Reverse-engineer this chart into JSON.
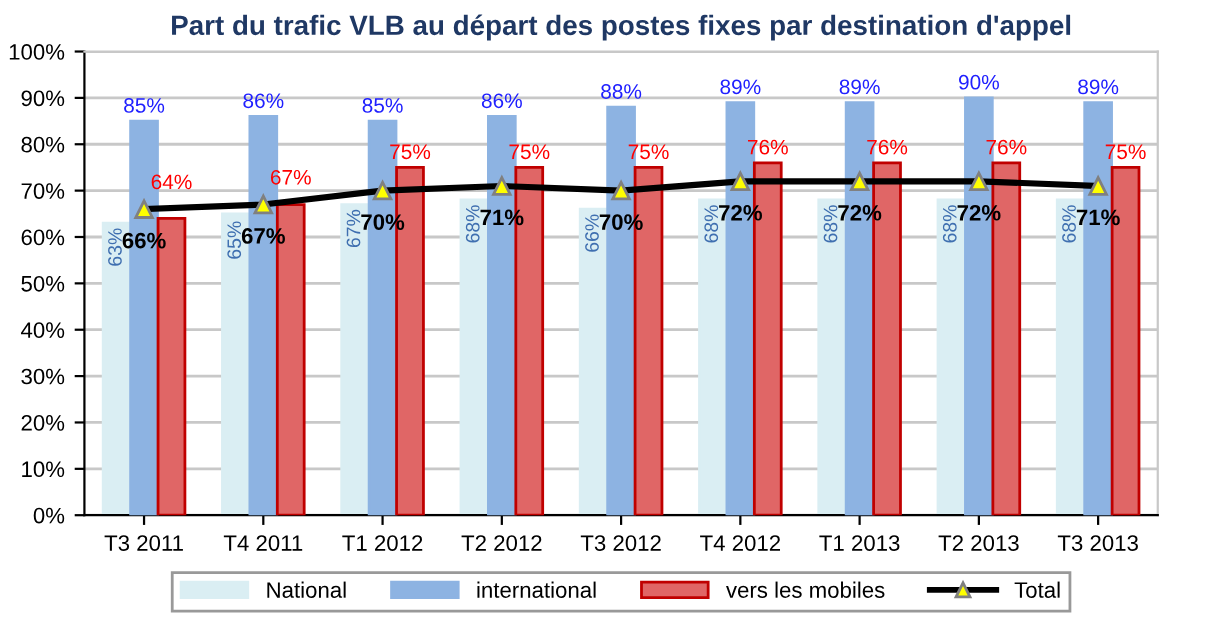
{
  "chart_data": {
    "type": "bar",
    "title": "Part du trafic VLB au départ des postes fixes par destination d'appel",
    "categories": [
      "T3 2011",
      "T4 2011",
      "T1 2012",
      "T2 2012",
      "T3 2012",
      "T4 2012",
      "T1 2013",
      "T2 2013",
      "T3 2013"
    ],
    "series": [
      {
        "name": "National",
        "color": "#daeef3",
        "values": [
          63,
          65,
          67,
          68,
          66,
          68,
          68,
          68,
          68
        ],
        "value_labels": [
          "63%",
          "65%",
          "67%",
          "68%",
          "66%",
          "68%",
          "68%",
          "68%",
          "68%"
        ]
      },
      {
        "name": "international",
        "color": "#8db3e2",
        "values": [
          85,
          86,
          85,
          86,
          88,
          89,
          89,
          90,
          89
        ],
        "value_labels": [
          "85%",
          "86%",
          "85%",
          "86%",
          "88%",
          "89%",
          "89%",
          "90%",
          "89%"
        ]
      },
      {
        "name": "vers les mobiles",
        "color": "#e06666",
        "values": [
          64,
          67,
          75,
          75,
          75,
          76,
          76,
          76,
          75
        ],
        "value_labels": [
          "64%",
          "67%",
          "75%",
          "75%",
          "75%",
          "76%",
          "76%",
          "76%",
          "75%"
        ]
      },
      {
        "name": "Total",
        "type": "line",
        "color": "#000000",
        "marker": "triangle",
        "values": [
          66,
          67,
          70,
          71,
          70,
          72,
          72,
          72,
          71
        ],
        "value_labels": [
          "66%",
          "67%",
          "70%",
          "71%",
          "70%",
          "72%",
          "72%",
          "72%",
          "71%"
        ]
      }
    ],
    "ylim": [
      0,
      100
    ],
    "yticks": [
      {
        "value": 0,
        "label": "0%"
      },
      {
        "value": 10,
        "label": "10%"
      },
      {
        "value": 20,
        "label": "20%"
      },
      {
        "value": 30,
        "label": "30%"
      },
      {
        "value": 40,
        "label": "40%"
      },
      {
        "value": 50,
        "label": "50%"
      },
      {
        "value": 60,
        "label": "60%"
      },
      {
        "value": 70,
        "label": "70%"
      },
      {
        "value": 80,
        "label": "80%"
      },
      {
        "value": 90,
        "label": "90%"
      },
      {
        "value": 100,
        "label": "100%"
      }
    ],
    "grid": "y",
    "legend": "bottom"
  }
}
